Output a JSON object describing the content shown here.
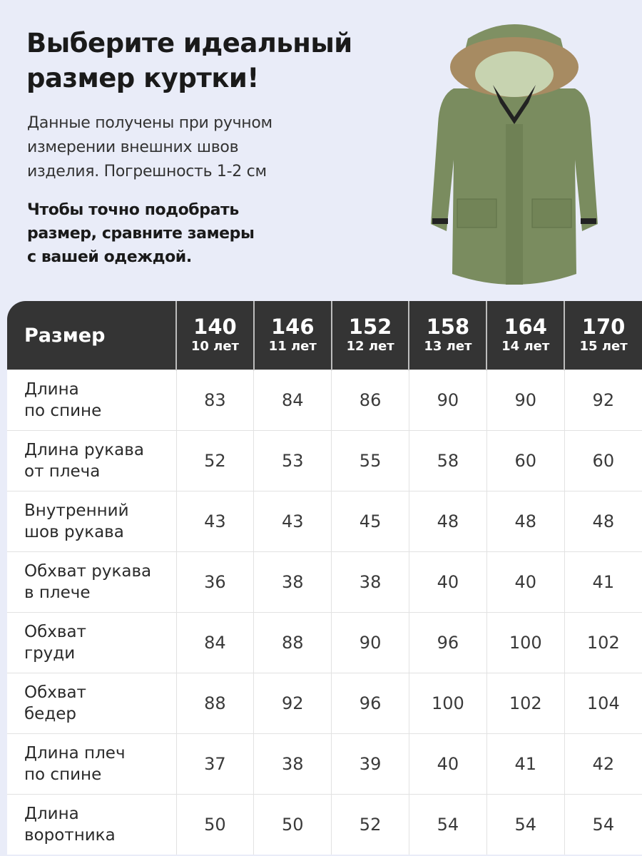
{
  "title": [
    "Выберите идеальный",
    "размер куртки!"
  ],
  "description": [
    "Данные получены при ручном",
    "измерении внешних швов",
    "изделия. Погрешность 1-2 см"
  ],
  "note": [
    "Чтобы точно подобрать",
    "размер, сравните замеры",
    "с вашей одеждой."
  ],
  "colors": {
    "background": "#e9ecf8",
    "header": "#343434",
    "jacket": "#7a8c5f"
  },
  "table": {
    "header_label": "Размер",
    "sizes": [
      {
        "size": "140",
        "age": "10 лет"
      },
      {
        "size": "146",
        "age": "11 лет"
      },
      {
        "size": "152",
        "age": "12 лет"
      },
      {
        "size": "158",
        "age": "13 лет"
      },
      {
        "size": "164",
        "age": "14 лет"
      },
      {
        "size": "170",
        "age": "15 лет"
      }
    ],
    "rows": [
      {
        "label": [
          "Длина",
          "по спине"
        ],
        "values": [
          "83",
          "84",
          "86",
          "90",
          "90",
          "92"
        ]
      },
      {
        "label": [
          "Длина рукава",
          "от плеча"
        ],
        "values": [
          "52",
          "53",
          "55",
          "58",
          "60",
          "60"
        ]
      },
      {
        "label": [
          "Внутренний",
          "шов рукава"
        ],
        "values": [
          "43",
          "43",
          "45",
          "48",
          "48",
          "48"
        ]
      },
      {
        "label": [
          "Обхват рукава",
          "в плече"
        ],
        "values": [
          "36",
          "38",
          "38",
          "40",
          "40",
          "41"
        ]
      },
      {
        "label": [
          "Обхват",
          "груди"
        ],
        "values": [
          "84",
          "88",
          "90",
          "96",
          "100",
          "102"
        ]
      },
      {
        "label": [
          "Обхват",
          "бедер"
        ],
        "values": [
          "88",
          "92",
          "96",
          "100",
          "102",
          "104"
        ]
      },
      {
        "label": [
          "Длина плеч",
          "по спине"
        ],
        "values": [
          "37",
          "38",
          "39",
          "40",
          "41",
          "42"
        ]
      },
      {
        "label": [
          "Длина",
          "воротника"
        ],
        "values": [
          "50",
          "50",
          "52",
          "54",
          "54",
          "54"
        ]
      }
    ]
  }
}
